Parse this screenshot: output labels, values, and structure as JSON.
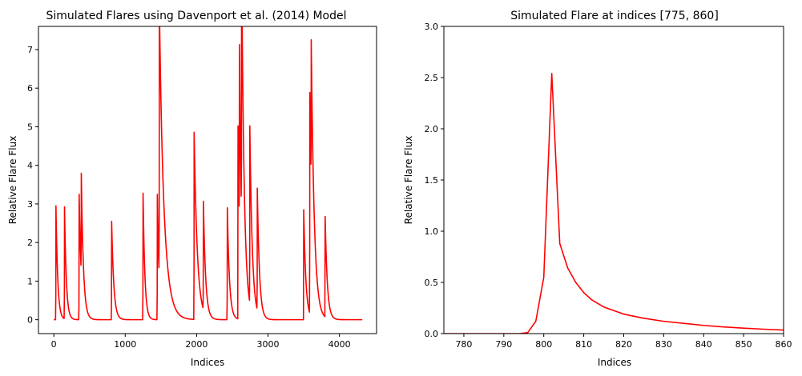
{
  "chart_data": [
    {
      "type": "line",
      "title": "Simulated Flares using Davenport et al. (2014) Model",
      "xlabel": "Indices",
      "ylabel": "Relative Flare Flux",
      "xlim": [
        -215,
        4520
      ],
      "ylim": [
        -0.36,
        7.6
      ],
      "xticks": [
        0,
        1000,
        2000,
        3000,
        4000
      ],
      "yticks": [
        0,
        1,
        2,
        3,
        4,
        5,
        6,
        7
      ],
      "grid": false,
      "series_color": "#ff0000",
      "flares": [
        {
          "t": 30,
          "amp": 2.95,
          "tau": 25
        },
        {
          "t": 150,
          "amp": 2.9,
          "tau": 25
        },
        {
          "t": 355,
          "amp": 3.25,
          "tau": 30
        },
        {
          "t": 385,
          "amp": 2.6,
          "tau": 30
        },
        {
          "t": 810,
          "amp": 2.55,
          "tau": 30
        },
        {
          "t": 1250,
          "amp": 3.28,
          "tau": 25
        },
        {
          "t": 1450,
          "amp": 3.25,
          "tau": 25
        },
        {
          "t": 1478,
          "amp": 7.22,
          "tau": 70
        },
        {
          "t": 1965,
          "amp": 4.85,
          "tau": 45
        },
        {
          "t": 2095,
          "amp": 2.8,
          "tau": 30
        },
        {
          "t": 2430,
          "amp": 2.9,
          "tau": 30
        },
        {
          "t": 2580,
          "amp": 5.0,
          "tau": 30
        },
        {
          "t": 2600,
          "amp": 4.55,
          "tau": 30
        },
        {
          "t": 2630,
          "amp": 6.85,
          "tau": 40
        },
        {
          "t": 2745,
          "amp": 4.58,
          "tau": 35
        },
        {
          "t": 2850,
          "amp": 3.15,
          "tau": 30
        },
        {
          "t": 3500,
          "amp": 2.85,
          "tau": 30
        },
        {
          "t": 3585,
          "amp": 5.72,
          "tau": 40
        },
        {
          "t": 3605,
          "amp": 3.7,
          "tau": 45
        },
        {
          "t": 3800,
          "amp": 2.6,
          "tau": 30
        }
      ],
      "x_end": 4320
    },
    {
      "type": "line",
      "title": "Simulated Flare at indices [775, 860]",
      "xlabel": "Indices",
      "ylabel": "Relative Flare Flux",
      "xlim": [
        775,
        860
      ],
      "ylim": [
        0,
        3.0
      ],
      "xticks": [
        780,
        790,
        800,
        810,
        820,
        830,
        840,
        850,
        860
      ],
      "yticks": [
        0.0,
        0.5,
        1.0,
        1.5,
        2.0,
        2.5,
        3.0
      ],
      "ytick_labels": [
        "0.0",
        "0.5",
        "1.0",
        "1.5",
        "2.0",
        "2.5",
        "3.0"
      ],
      "grid": false,
      "series_color": "#ff0000",
      "x": [
        775,
        790,
        794,
        796,
        798,
        800,
        802,
        804,
        806,
        808,
        810,
        812,
        815,
        820,
        825,
        830,
        835,
        840,
        845,
        850,
        855,
        860
      ],
      "y": [
        0.0,
        0.0,
        0.0,
        0.01,
        0.12,
        0.55,
        2.54,
        0.88,
        0.64,
        0.5,
        0.4,
        0.33,
        0.26,
        0.19,
        0.15,
        0.12,
        0.1,
        0.08,
        0.065,
        0.053,
        0.043,
        0.035
      ]
    }
  ]
}
